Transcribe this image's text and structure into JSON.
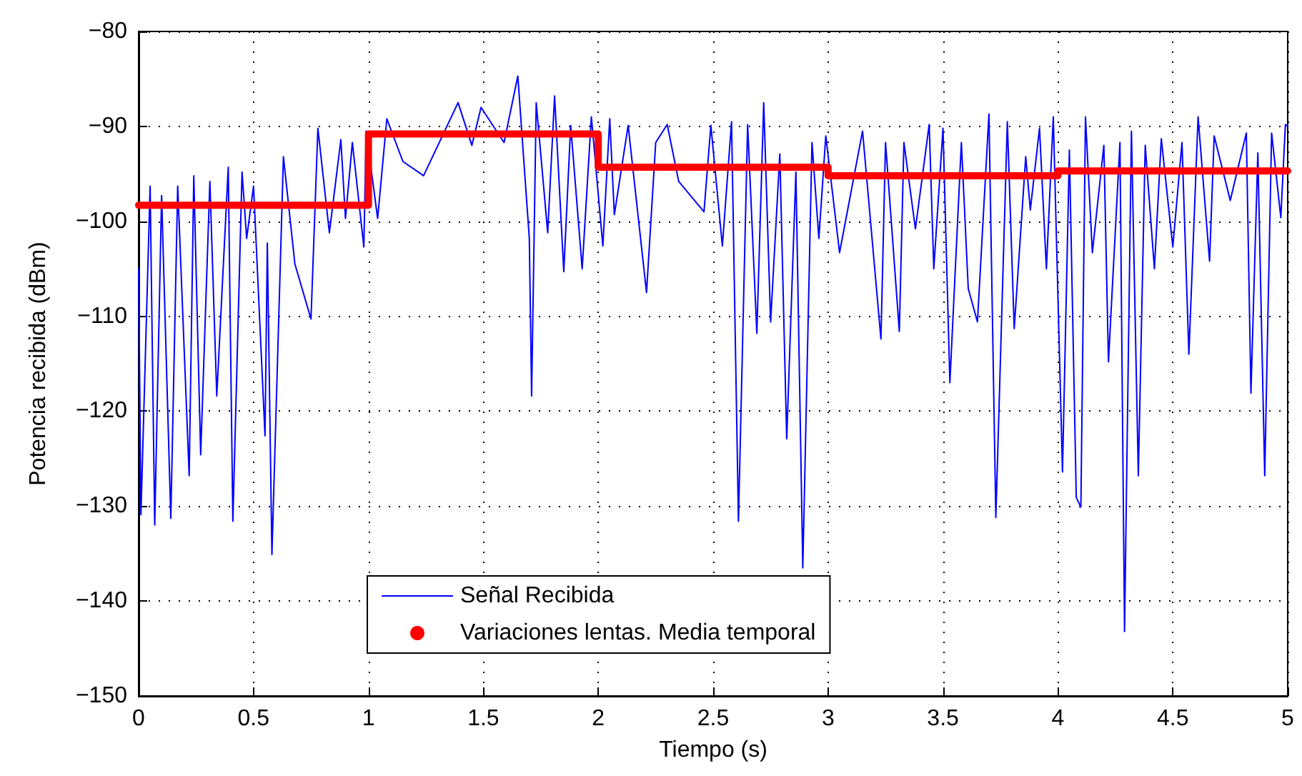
{
  "chart_data": {
    "type": "line",
    "xlabel": "Tiempo (s)",
    "ylabel": "Potencia recibida (dBm)",
    "xlim": [
      0,
      5
    ],
    "xticks": [
      0,
      0.5,
      1,
      1.5,
      2,
      2.5,
      3,
      3.5,
      4,
      4.5,
      5
    ],
    "ylim": [
      -150,
      -80
    ],
    "yticks": [
      -150,
      -140,
      -130,
      -120,
      -110,
      -100,
      -90,
      -80
    ],
    "grid": true,
    "legend": "bottom",
    "series": [
      {
        "name": "Señal Recibida",
        "color": "#0000ff",
        "line_style": "solid",
        "marker": "none",
        "x": [
          0,
          0.01,
          0.05,
          0.07,
          0.1,
          0.14,
          0.17,
          0.22,
          0.24,
          0.27,
          0.31,
          0.34,
          0.39,
          0.41,
          0.45,
          0.47,
          0.5,
          0.55,
          0.56,
          0.58,
          0.63,
          0.68,
          0.75,
          0.78,
          0.83,
          0.88,
          0.9,
          0.93,
          0.98,
          0.99,
          1.04,
          1.08,
          1.15,
          1.24,
          1.39,
          1.45,
          1.49,
          1.59,
          1.65,
          1.7,
          1.71,
          1.73,
          1.78,
          1.81,
          1.85,
          1.88,
          1.93,
          1.97,
          2.02,
          2.05,
          2.07,
          2.13,
          2.21,
          2.25,
          2.3,
          2.35,
          2.46,
          2.49,
          2.54,
          2.58,
          2.61,
          2.65,
          2.69,
          2.72,
          2.75,
          2.79,
          2.82,
          2.86,
          2.89,
          2.93,
          2.96,
          2.99,
          3.05,
          3.15,
          3.23,
          3.25,
          3.31,
          3.33,
          3.38,
          3.44,
          3.46,
          3.5,
          3.53,
          3.58,
          3.61,
          3.65,
          3.7,
          3.73,
          3.78,
          3.81,
          3.86,
          3.88,
          3.92,
          3.95,
          3.98,
          4.02,
          4.05,
          4.08,
          4.1,
          4.12,
          4.15,
          4.2,
          4.22,
          4.27,
          4.29,
          4.32,
          4.35,
          4.38,
          4.42,
          4.45,
          4.5,
          4.54,
          4.57,
          4.61,
          4.66,
          4.68,
          4.75,
          4.82,
          4.84,
          4.87,
          4.9,
          4.93,
          4.97,
          4.99,
          5
        ],
        "values": [
          -105,
          -130.9,
          -96.3,
          -132,
          -97.3,
          -131.3,
          -96.3,
          -126.8,
          -95.2,
          -124.6,
          -95.8,
          -118.4,
          -94.3,
          -131.6,
          -94.8,
          -101.8,
          -96.3,
          -122.6,
          -102.3,
          -135.1,
          -93.2,
          -104.5,
          -110.3,
          -90.2,
          -101.2,
          -91.4,
          -99.7,
          -91.7,
          -102.7,
          -90.5,
          -99.7,
          -89.2,
          -93.7,
          -95.2,
          -87.5,
          -92,
          -88,
          -91.7,
          -84.7,
          -101.8,
          -118.4,
          -87.5,
          -101.2,
          -86.8,
          -105.3,
          -89.9,
          -105,
          -89,
          -102.6,
          -89.2,
          -99.3,
          -89.9,
          -107.5,
          -91.7,
          -89.8,
          -95.8,
          -99,
          -89.9,
          -102.6,
          -89.5,
          -131.6,
          -89.8,
          -111.8,
          -87.5,
          -110.6,
          -92.9,
          -122.9,
          -94.8,
          -136.5,
          -91.7,
          -101.8,
          -91,
          -103.3,
          -90.5,
          -112.4,
          -91.7,
          -111.6,
          -91.7,
          -100.8,
          -89.8,
          -105,
          -90.2,
          -117,
          -91.7,
          -107.1,
          -110.6,
          -88.7,
          -131.2,
          -89.5,
          -111.3,
          -93.2,
          -98.8,
          -90.2,
          -105,
          -89,
          -126.4,
          -92.5,
          -129.1,
          -130.1,
          -89,
          -103.3,
          -92,
          -114.8,
          -91.7,
          -143.2,
          -90.5,
          -126.8,
          -92,
          -105,
          -91.3,
          -102.7,
          -91.7,
          -114,
          -89,
          -104.2,
          -91,
          -97.8,
          -90.7,
          -118.1,
          -92.8,
          -126.8,
          -90.7,
          -99.6,
          -89.8,
          -90
        ]
      },
      {
        "name": "Variaciones lentas. Media temporal",
        "color": "#ff0000",
        "line_style": "solid",
        "marker": "none",
        "x": [
          0,
          1,
          1,
          2,
          2,
          3,
          3,
          4,
          4,
          5
        ],
        "values": [
          -98.3,
          -98.3,
          -90.8,
          -90.8,
          -94.3,
          -94.3,
          -95.2,
          -95.2,
          -94.7,
          -94.7
        ]
      }
    ]
  }
}
